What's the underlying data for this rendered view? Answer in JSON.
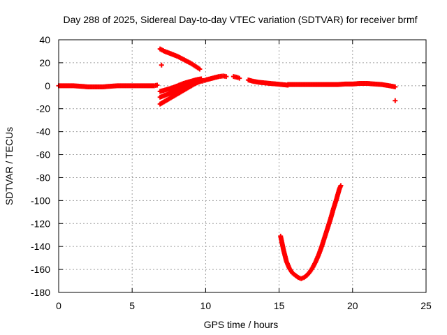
{
  "chart_data": {
    "type": "scatter",
    "title": "Day 288 of 2025, Sidereal Day-to-day VTEC variation (SDTVAR) for receiver brmf",
    "xlabel": "GPS time / hours",
    "ylabel": "SDTVAR / TECUs",
    "xlim": [
      0,
      25
    ],
    "ylim": [
      -180,
      40
    ],
    "xticks": [
      0,
      5,
      10,
      15,
      20,
      25
    ],
    "yticks": [
      40,
      20,
      0,
      -20,
      -40,
      -60,
      -80,
      -100,
      -120,
      -140,
      -160,
      -180
    ],
    "grid": true,
    "marker": "plus",
    "color": "#ff0000",
    "series": [
      {
        "name": "baseline-early",
        "x": [
          0.0,
          0.5,
          1.0,
          1.5,
          2.0,
          2.5,
          3.0,
          3.5,
          4.0,
          4.5,
          5.0,
          5.5,
          6.0,
          6.5,
          6.7
        ],
        "y": [
          0,
          0,
          0,
          -0.5,
          -1,
          -1,
          -1,
          -0.5,
          0,
          0,
          0,
          0,
          0,
          0,
          0.5
        ]
      },
      {
        "name": "descending-arc",
        "x": [
          6.9,
          7.2,
          7.5,
          7.8,
          8.1,
          8.4,
          8.7,
          9.0,
          9.3,
          9.6
        ],
        "y": [
          32,
          30,
          28.5,
          27,
          25.5,
          23.5,
          21.5,
          19.5,
          17,
          14.5
        ]
      },
      {
        "name": "isolated-7h",
        "x": [
          7.0
        ],
        "y": [
          18
        ]
      },
      {
        "name": "rising-arc-lower",
        "x": [
          6.9,
          7.3,
          7.7,
          8.1,
          8.5,
          8.9,
          9.3,
          9.7
        ],
        "y": [
          -16,
          -13,
          -10,
          -7,
          -4,
          -1,
          2,
          4
        ]
      },
      {
        "name": "rising-arc-middle",
        "x": [
          6.9,
          7.3,
          7.7,
          8.1,
          8.5,
          8.9,
          9.3,
          9.7
        ],
        "y": [
          -10,
          -8,
          -6,
          -3,
          0,
          2,
          4,
          6
        ]
      },
      {
        "name": "rising-arc-upper",
        "x": [
          6.9,
          7.3,
          7.7,
          8.1,
          8.5,
          8.9,
          9.3,
          9.7
        ],
        "y": [
          -5,
          -3.5,
          -2,
          0,
          2,
          3.5,
          5,
          6
        ]
      },
      {
        "name": "bump-10-to-12h",
        "x": [
          9.8,
          10.0,
          10.3,
          10.6,
          10.9,
          11.2,
          11.4
        ],
        "y": [
          4,
          5,
          6,
          7,
          8,
          8.5,
          8
        ]
      },
      {
        "name": "bump-12h",
        "x": [
          11.9,
          12.1,
          12.3
        ],
        "y": [
          8,
          7.5,
          6.5
        ]
      },
      {
        "name": "decay-13-to-15h",
        "x": [
          12.9,
          13.2,
          13.6,
          14.0,
          14.4,
          14.8,
          15.2,
          15.6
        ],
        "y": [
          5,
          4,
          3,
          2.5,
          2,
          1.5,
          1,
          0.5
        ]
      },
      {
        "name": "baseline-late",
        "x": [
          15.6,
          16.0,
          16.5,
          17.0,
          17.5,
          18.0,
          18.5,
          19.0,
          19.5,
          20.0,
          20.5,
          21.0,
          21.5,
          22.0,
          22.5,
          22.9
        ],
        "y": [
          1,
          1,
          1,
          1,
          1,
          1,
          1,
          1,
          1.5,
          1.5,
          2,
          2,
          1.5,
          1,
          0,
          -1
        ]
      },
      {
        "name": "isolated-23h",
        "x": [
          22.9
        ],
        "y": [
          -13
        ]
      },
      {
        "name": "v-curve",
        "x": [
          15.1,
          15.3,
          15.5,
          15.7,
          15.9,
          16.1,
          16.3,
          16.5,
          16.7,
          16.9,
          17.1,
          17.3,
          17.5,
          17.7,
          17.9,
          18.1,
          18.3,
          18.5,
          18.7,
          18.9,
          19.1,
          19.2
        ],
        "y": [
          -131,
          -143,
          -153,
          -159,
          -163,
          -165,
          -167,
          -168,
          -167,
          -165,
          -162,
          -158,
          -153,
          -147,
          -140,
          -132,
          -124,
          -116,
          -107,
          -99,
          -90,
          -87
        ]
      }
    ]
  }
}
